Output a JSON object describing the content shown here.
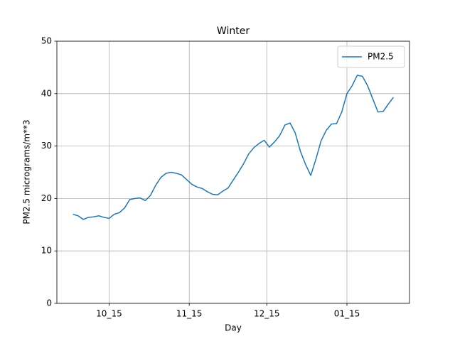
{
  "chart_data": {
    "type": "line",
    "title": "Winter",
    "xlabel": "Day",
    "ylabel": "PM2.5 micrograms/m**3",
    "x": [
      0,
      2,
      4,
      6,
      8,
      10,
      12,
      14,
      16,
      18,
      20,
      22,
      24,
      26,
      28,
      30,
      32,
      34,
      36,
      38,
      40,
      42,
      44,
      46,
      48,
      50,
      52,
      54,
      56,
      58,
      60,
      62,
      64,
      66,
      68,
      70,
      72,
      74,
      76,
      78,
      80,
      82,
      84,
      86,
      88,
      90,
      92,
      94,
      96,
      98,
      100,
      102,
      104,
      106,
      108,
      110,
      112,
      114,
      116,
      118,
      120,
      122,
      124
    ],
    "series": [
      {
        "name": "PM2.5",
        "color": "#1f77b4",
        "values": [
          17.0,
          16.7,
          16.0,
          16.4,
          16.5,
          16.7,
          16.4,
          16.2,
          17.0,
          17.3,
          18.2,
          19.8,
          20.0,
          20.1,
          19.6,
          20.6,
          22.5,
          24.0,
          24.8,
          25.0,
          24.8,
          24.5,
          23.6,
          22.7,
          22.2,
          21.9,
          21.3,
          20.8,
          20.7,
          21.4,
          22.0,
          23.5,
          25.0,
          26.6,
          28.5,
          29.7,
          30.5,
          31.1,
          29.8,
          30.8,
          32.0,
          34.0,
          34.4,
          32.5,
          29.0,
          26.5,
          24.4,
          27.5,
          31.0,
          33.0,
          34.2,
          34.3,
          36.5,
          40.0,
          41.5,
          43.5,
          43.3,
          41.5,
          39.0,
          36.5,
          36.6,
          38.0,
          39.3
        ]
      }
    ],
    "xlim": [
      -6.2,
      130.2
    ],
    "xticks": [
      {
        "value": 14,
        "label": "10_15"
      },
      {
        "value": 45,
        "label": "11_15"
      },
      {
        "value": 75,
        "label": "12_15"
      },
      {
        "value": 106,
        "label": "01_15"
      }
    ],
    "ylim": [
      0,
      50
    ],
    "yticks": [
      0,
      10,
      20,
      30,
      40,
      50
    ],
    "grid": true,
    "legend": "upper right"
  }
}
